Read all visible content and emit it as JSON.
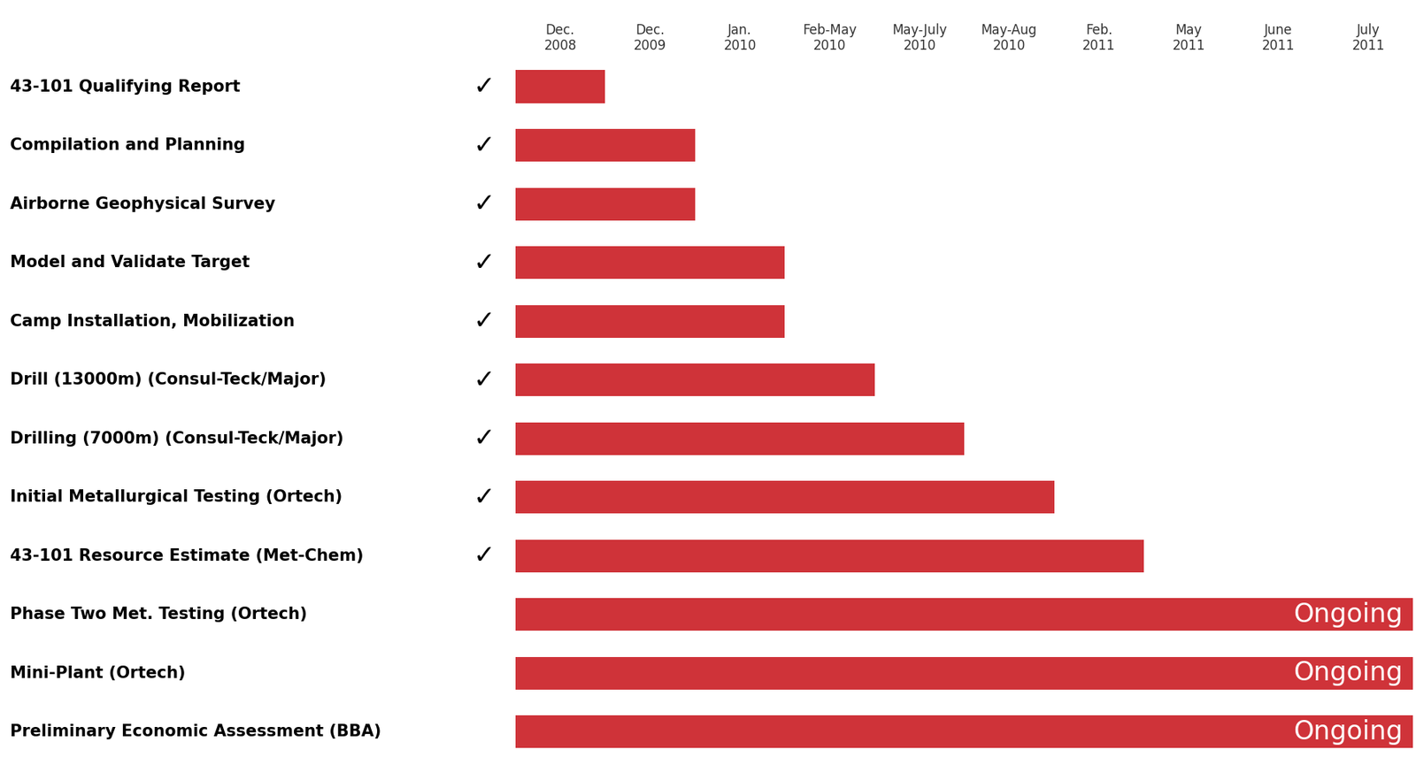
{
  "chart_data": {
    "type": "gantt",
    "orientation": "horizontal",
    "color": "#cf3339",
    "columns": [
      "Dec.\n2008",
      "Dec.\n2009",
      "Jan.\n2010",
      "Feb-May\n2010",
      "May-July\n2010",
      "May-Aug\n2010",
      "Feb.\n2011",
      "May\n2011",
      "June\n2011",
      "July\n2011"
    ],
    "tasks": [
      {
        "name": "43-101 Qualifying Report",
        "start": "Dec.\n2008",
        "end": "Dec.\n2008",
        "status": "✓"
      },
      {
        "name": "Compilation and Planning",
        "start": "Dec.\n2008",
        "end": "Dec.\n2009",
        "status": "✓"
      },
      {
        "name": "Airborne Geophysical Survey",
        "start": "Dec.\n2008",
        "end": "Dec.\n2009",
        "status": "✓"
      },
      {
        "name": "Model and Validate Target",
        "start": "Dec.\n2008",
        "end": "Jan.\n2010",
        "status": "✓"
      },
      {
        "name": "Camp Installation, Mobilization",
        "start": "Dec.\n2008",
        "end": "Jan.\n2010",
        "status": "✓"
      },
      {
        "name": "Drill (13000m) (Consul-Teck/Major)",
        "start": "Dec.\n2008",
        "end": "Feb-May\n2010",
        "status": "✓"
      },
      {
        "name": "Drilling (7000m) (Consul-Teck/Major)",
        "start": "Dec.\n2008",
        "end": "May-July\n2010",
        "status": "✓"
      },
      {
        "name": "Initial Metallurgical Testing (Ortech)",
        "start": "Dec.\n2008",
        "end": "May-Aug\n2010",
        "status": "✓"
      },
      {
        "name": "43-101 Resource Estimate (Met-Chem)",
        "start": "Dec.\n2008",
        "end": "Feb.\n2011",
        "status": "✓"
      },
      {
        "name": "Phase Two Met. Testing (Ortech)",
        "start": "Dec.\n2008",
        "end": "July\n2011",
        "status": "Ongoing"
      },
      {
        "name": "Mini-Plant (Ortech)",
        "start": "Dec.\n2008",
        "end": "July\n2011",
        "status": "Ongoing"
      },
      {
        "name": "Preliminary Economic Assessment (BBA)",
        "start": "Dec.\n2008",
        "end": "July\n2011",
        "status": "Ongoing"
      }
    ]
  }
}
